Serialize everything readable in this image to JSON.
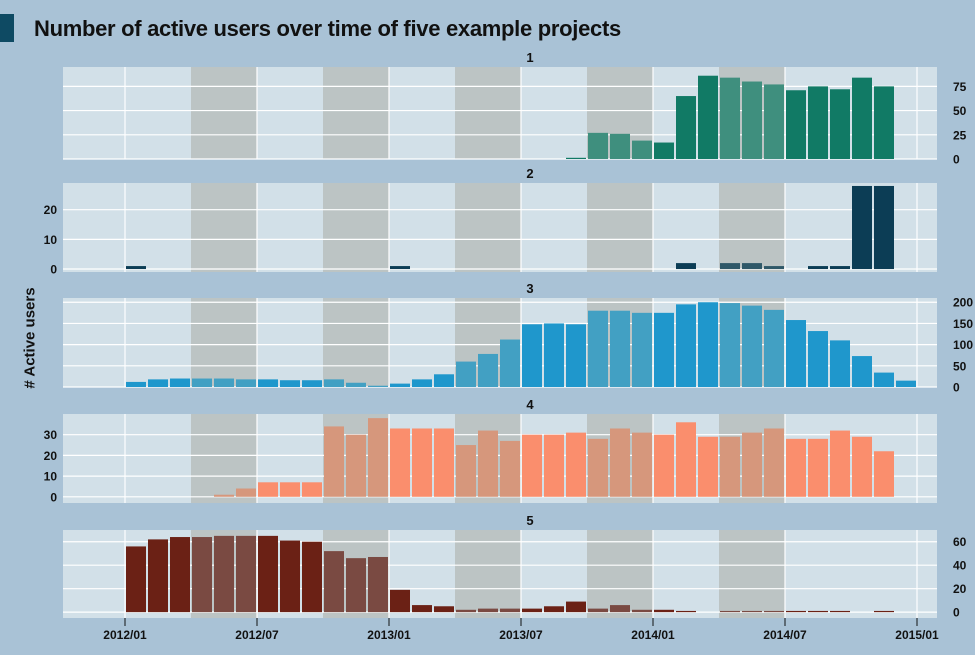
{
  "title": "Number of active users over time of five example projects",
  "ylabel": "# Active users",
  "colors": {
    "background": "#a9c2d6",
    "panel": "#d2e0e8",
    "shade": "#bcc4c4",
    "gridline": "#ffffff"
  },
  "chart_data": {
    "type": "bar",
    "x_tick_labels": [
      "2012/01",
      "2012/07",
      "2013/01",
      "2013/07",
      "2014/01",
      "2014/07",
      "2015/01"
    ],
    "months": [
      "2011/12",
      "2012/01",
      "2012/02",
      "2012/03",
      "2012/04",
      "2012/05",
      "2012/06",
      "2012/07",
      "2012/08",
      "2012/09",
      "2012/10",
      "2012/11",
      "2012/12",
      "2013/01",
      "2013/02",
      "2013/03",
      "2013/04",
      "2013/05",
      "2013/06",
      "2013/07",
      "2013/08",
      "2013/09",
      "2013/10",
      "2013/11",
      "2013/12",
      "2014/01",
      "2014/02",
      "2014/03",
      "2014/04",
      "2014/05",
      "2014/06",
      "2014/07",
      "2014/08",
      "2014/09",
      "2014/10",
      "2014/11",
      "2014/12"
    ],
    "shaded_periods": [
      [
        "2012/04",
        "2012/06"
      ],
      [
        "2012/10",
        "2012/12"
      ],
      [
        "2013/04",
        "2013/06"
      ],
      [
        "2013/10",
        "2013/12"
      ],
      [
        "2014/04",
        "2014/06"
      ]
    ],
    "grid": true,
    "panels": [
      {
        "label": "1",
        "color": "#117a65",
        "shaded_color": "#3f8f7e",
        "ylim": [
          0,
          95
        ],
        "yticks": [
          0,
          25,
          50,
          75
        ],
        "ytick_side": "right",
        "values": [
          null,
          null,
          null,
          null,
          null,
          null,
          null,
          null,
          null,
          null,
          null,
          null,
          null,
          null,
          null,
          null,
          null,
          null,
          null,
          null,
          null,
          1,
          27,
          26,
          19,
          17,
          65,
          86,
          84,
          80,
          77,
          71,
          75,
          72,
          84,
          75,
          null
        ]
      },
      {
        "label": "2",
        "color": "#0c3d55",
        "shaded_color": "#2f5868",
        "ylim": [
          -1,
          29
        ],
        "yticks": [
          0,
          10,
          20
        ],
        "ytick_side": "left",
        "values": [
          null,
          1,
          null,
          null,
          null,
          null,
          null,
          null,
          null,
          null,
          null,
          null,
          null,
          1,
          null,
          null,
          null,
          null,
          null,
          null,
          null,
          null,
          null,
          null,
          null,
          null,
          2,
          null,
          2,
          2,
          1,
          null,
          1,
          1,
          28,
          28,
          null
        ]
      },
      {
        "label": "3",
        "color": "#1f97cc",
        "shaded_color": "#42a0c3",
        "ylim": [
          0,
          210
        ],
        "yticks": [
          0,
          50,
          100,
          150,
          200
        ],
        "ytick_side": "right",
        "values": [
          null,
          12,
          18,
          20,
          20,
          20,
          18,
          18,
          16,
          16,
          18,
          10,
          3,
          8,
          18,
          30,
          60,
          78,
          112,
          148,
          150,
          148,
          180,
          180,
          175,
          175,
          195,
          200,
          198,
          192,
          182,
          158,
          132,
          110,
          73,
          34,
          15
        ]
      },
      {
        "label": "4",
        "color": "#fa8e6d",
        "shaded_color": "#d6977c",
        "ylim": [
          -3,
          40
        ],
        "yticks": [
          0,
          10,
          20,
          30
        ],
        "ytick_side": "left",
        "values": [
          null,
          null,
          null,
          null,
          null,
          1,
          4,
          7,
          7,
          7,
          34,
          30,
          38,
          33,
          33,
          33,
          25,
          32,
          27,
          30,
          30,
          31,
          28,
          33,
          31,
          30,
          36,
          29,
          29,
          31,
          33,
          28,
          28,
          32,
          29,
          22,
          null
        ]
      },
      {
        "label": "5",
        "color": "#6b2115",
        "shaded_color": "#7a4a42",
        "ylim": [
          -5,
          70
        ],
        "yticks": [
          0,
          20,
          40,
          60
        ],
        "ytick_side": "right",
        "values": [
          null,
          56,
          62,
          64,
          64,
          65,
          65,
          65,
          61,
          60,
          52,
          46,
          47,
          19,
          6,
          5,
          2,
          3,
          3,
          3,
          5,
          9,
          3,
          6,
          2,
          2,
          1,
          null,
          1,
          0.5,
          0.5,
          0.5,
          0.5,
          1,
          null,
          1,
          null
        ]
      }
    ]
  }
}
